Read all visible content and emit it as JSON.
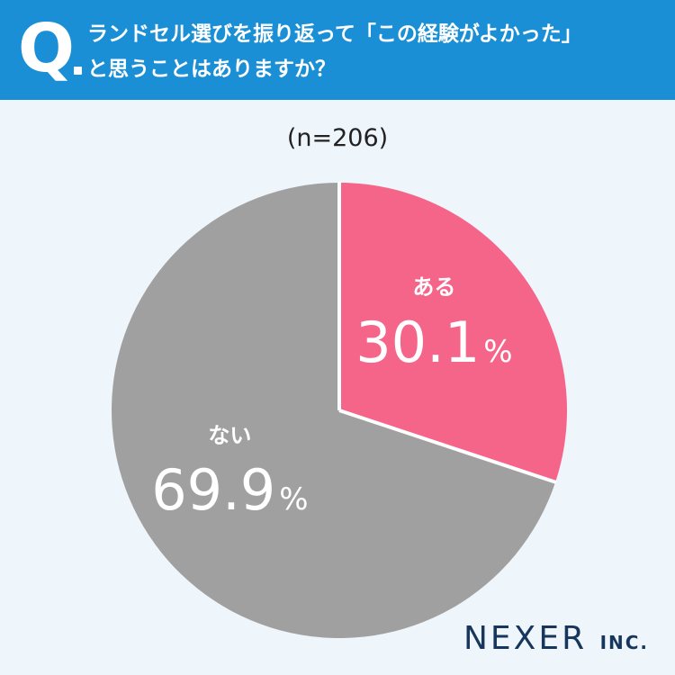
{
  "question": {
    "mark": "Q",
    "line1": "ランドセル選びを振り返って「この経験がよかった」",
    "line2": "と思うことはありますか？"
  },
  "sample_size": "(n=206)",
  "chart_data": {
    "type": "pie",
    "slices": [
      {
        "label": "ある",
        "value": 30.1,
        "display": "30.1",
        "color": "#f5658a"
      },
      {
        "label": "ない",
        "value": 69.9,
        "display": "69.9",
        "color": "#a0a0a0"
      }
    ],
    "unit": "%"
  },
  "logo": {
    "main": "NEXER",
    "suffix": "INC."
  },
  "colors": {
    "header": "#1b8fd6",
    "background": "#eef5fb",
    "slice_divider": "#ffffff"
  }
}
